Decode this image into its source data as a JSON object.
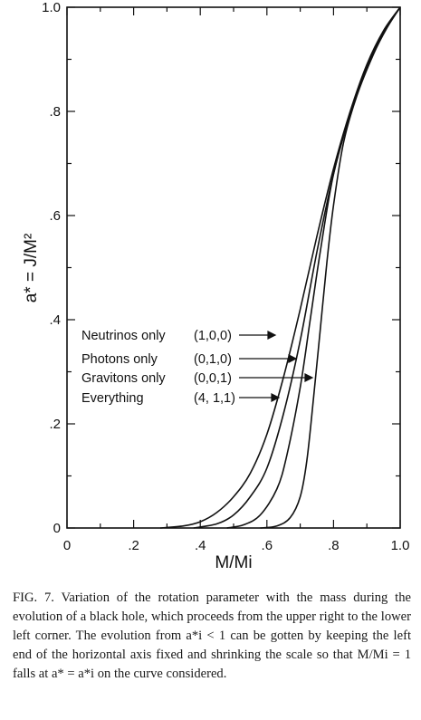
{
  "chart_data": {
    "type": "line",
    "xlabel": "M/Mi",
    "ylabel": "a* = J/M²",
    "xlim": [
      0,
      1.0
    ],
    "ylim": [
      0,
      1.0
    ],
    "x_ticks": [
      "0",
      ".2",
      ".4",
      ".6",
      ".8",
      "1.0"
    ],
    "y_ticks": [
      "0",
      ".2",
      ".4",
      ".6",
      ".8",
      "1.0"
    ],
    "legend": [
      {
        "label": "Neutrinos only",
        "code": "(1,0,0)"
      },
      {
        "label": "Photons only",
        "code": "(0,1,0)"
      },
      {
        "label": "Gravitons only",
        "code": "(0,0,1)"
      },
      {
        "label": "Everything",
        "code": "(4, 1,1)"
      }
    ],
    "series": [
      {
        "points": [
          [
            0.28,
            0
          ],
          [
            0.35,
            0.004
          ],
          [
            0.4,
            0.012
          ],
          [
            0.45,
            0.03
          ],
          [
            0.5,
            0.06
          ],
          [
            0.55,
            0.105
          ],
          [
            0.6,
            0.18
          ],
          [
            0.65,
            0.29
          ],
          [
            0.7,
            0.42
          ],
          [
            0.75,
            0.56
          ],
          [
            0.8,
            0.69
          ],
          [
            0.85,
            0.8
          ],
          [
            0.9,
            0.89
          ],
          [
            0.95,
            0.955
          ],
          [
            1.0,
            1.0
          ]
        ]
      },
      {
        "points": [
          [
            0.38,
            0
          ],
          [
            0.45,
            0.008
          ],
          [
            0.5,
            0.025
          ],
          [
            0.55,
            0.06
          ],
          [
            0.6,
            0.115
          ],
          [
            0.65,
            0.22
          ],
          [
            0.7,
            0.36
          ],
          [
            0.75,
            0.53
          ],
          [
            0.8,
            0.68
          ],
          [
            0.85,
            0.795
          ],
          [
            0.9,
            0.885
          ],
          [
            0.95,
            0.952
          ],
          [
            1.0,
            1.0
          ]
        ]
      },
      {
        "points": [
          [
            0.48,
            0
          ],
          [
            0.53,
            0.006
          ],
          [
            0.58,
            0.025
          ],
          [
            0.63,
            0.075
          ],
          [
            0.66,
            0.14
          ],
          [
            0.7,
            0.27
          ],
          [
            0.73,
            0.4
          ],
          [
            0.76,
            0.53
          ],
          [
            0.8,
            0.68
          ],
          [
            0.85,
            0.795
          ],
          [
            0.9,
            0.885
          ],
          [
            0.95,
            0.952
          ],
          [
            1.0,
            1.0
          ]
        ]
      },
      {
        "points": [
          [
            0.58,
            0
          ],
          [
            0.63,
            0.004
          ],
          [
            0.67,
            0.02
          ],
          [
            0.7,
            0.06
          ],
          [
            0.72,
            0.13
          ],
          [
            0.74,
            0.25
          ],
          [
            0.76,
            0.38
          ],
          [
            0.78,
            0.51
          ],
          [
            0.8,
            0.62
          ],
          [
            0.83,
            0.74
          ],
          [
            0.87,
            0.83
          ],
          [
            0.92,
            0.91
          ],
          [
            0.96,
            0.96
          ],
          [
            1.0,
            1.0
          ]
        ]
      }
    ]
  },
  "caption": "FIG. 7. Variation of the rotation parameter with the mass during the evolution of a black hole, which proceeds from the upper right to the lower left corner. The evolution from a*i < 1 can be gotten by keeping the left end of the horizontal axis fixed and shrinking the scale so that M/Mi = 1 falls at a* = a*i on the curve considered."
}
